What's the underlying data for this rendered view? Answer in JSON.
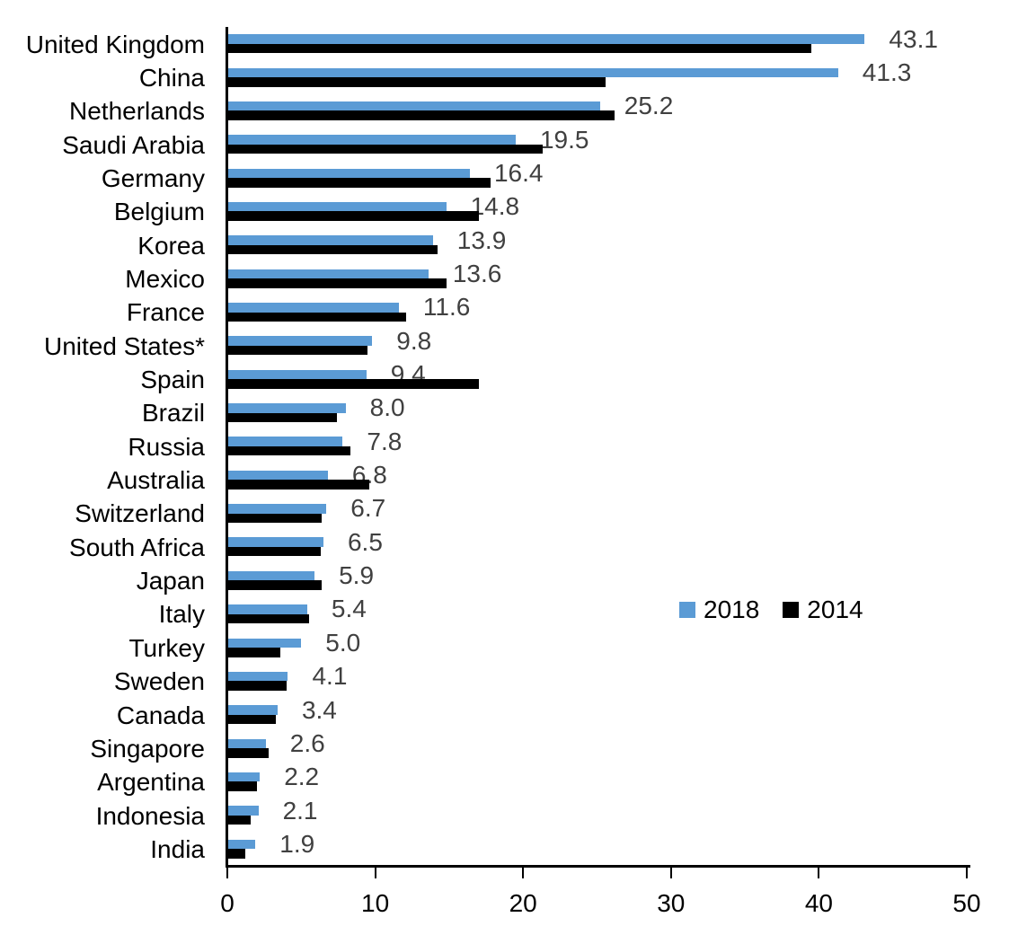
{
  "chart_data": {
    "type": "bar",
    "orientation": "horizontal",
    "title": "",
    "categories": [
      "United Kingdom",
      "China",
      "Netherlands",
      "Saudi Arabia",
      "Germany",
      "Belgium",
      "Korea",
      "Mexico",
      "France",
      "United States*",
      "Spain",
      "Brazil",
      "Russia",
      "Australia",
      "Switzerland",
      "South Africa",
      "Japan",
      "Italy",
      "Turkey",
      "Sweden",
      "Canada",
      "Singapore",
      "Argentina",
      "Indonesia",
      "India"
    ],
    "series": [
      {
        "name": "2018",
        "color": "#5B9BD5",
        "data_labels": true,
        "values": [
          43.1,
          41.3,
          25.2,
          19.5,
          16.4,
          14.8,
          13.9,
          13.6,
          11.6,
          9.8,
          9.4,
          8.0,
          7.8,
          6.8,
          6.7,
          6.5,
          5.9,
          5.4,
          5.0,
          4.1,
          3.4,
          2.6,
          2.2,
          2.1,
          1.9
        ]
      },
      {
        "name": "2014",
        "color": "#000000",
        "data_labels": false,
        "values": [
          39.5,
          25.6,
          26.2,
          21.3,
          17.8,
          17.0,
          14.2,
          14.8,
          12.1,
          9.5,
          17.0,
          7.4,
          8.3,
          9.6,
          6.4,
          6.3,
          6.4,
          5.5,
          3.6,
          4.0,
          3.3,
          2.8,
          2.0,
          1.6,
          1.2
        ]
      }
    ],
    "xlim": [
      0,
      50
    ],
    "xticks": [
      "0",
      "10",
      "20",
      "30",
      "40",
      "50"
    ],
    "grid": false,
    "legend_position": "middle-right",
    "data_label_color": "#404040",
    "axis_color": "#000000"
  }
}
